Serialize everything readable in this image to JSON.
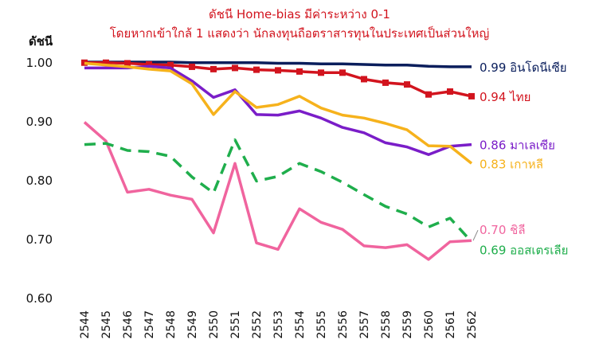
{
  "chart_data": {
    "type": "line",
    "title": "ดัชนี Home-bias มีค่าระหว่าง 0-1",
    "subtitle": "โดยหากเข้าใกล้ 1 แสดงว่า นักลงทุนถือตราสารทุนในประเทศเป็นส่วนใหญ่",
    "ylabel": "ดัชนี",
    "xlabel": "",
    "ylim": [
      0.6,
      1.0
    ],
    "yticks": [
      "0.60",
      "0.70",
      "0.80",
      "0.90",
      "1.00"
    ],
    "grid": false,
    "legend": "end-of-line labels",
    "x": [
      "2544",
      "2545",
      "2546",
      "2547",
      "2548",
      "2549",
      "2550",
      "2551",
      "2552",
      "2553",
      "2554",
      "2555",
      "2556",
      "2557",
      "2558",
      "2559",
      "2560",
      "2561",
      "2562"
    ],
    "series": [
      {
        "name": "อินโดนีเซีย",
        "end_label": "0.99",
        "color": "#0a1e5c",
        "dash": "solid",
        "markers": false,
        "values": [
          1.0,
          1.0,
          1.0,
          1.0,
          1.0,
          0.999,
          0.999,
          0.999,
          0.999,
          0.998,
          0.998,
          0.997,
          0.997,
          0.996,
          0.995,
          0.995,
          0.993,
          0.992,
          0.992
        ]
      },
      {
        "name": "ไทย",
        "end_label": "0.94",
        "color": "#d2141e",
        "dash": "solid",
        "markers": true,
        "values": [
          0.999,
          0.999,
          0.998,
          0.996,
          0.995,
          0.992,
          0.988,
          0.99,
          0.987,
          0.986,
          0.984,
          0.982,
          0.982,
          0.971,
          0.965,
          0.962,
          0.945,
          0.95,
          0.942
        ]
      },
      {
        "name": "มาเลเซีย",
        "end_label": "0.86",
        "color": "#7a1dc8",
        "dash": "solid",
        "markers": false,
        "values": [
          0.99,
          0.99,
          0.99,
          0.993,
          0.99,
          0.968,
          0.94,
          0.953,
          0.911,
          0.91,
          0.917,
          0.905,
          0.889,
          0.88,
          0.863,
          0.856,
          0.843,
          0.857,
          0.86
        ]
      },
      {
        "name": "เกาหลี",
        "end_label": "0.83",
        "color": "#f6b21c",
        "dash": "solid",
        "markers": false,
        "values": [
          0.998,
          0.995,
          0.992,
          0.988,
          0.985,
          0.963,
          0.911,
          0.95,
          0.923,
          0.928,
          0.942,
          0.922,
          0.91,
          0.905,
          0.896,
          0.885,
          0.858,
          0.857,
          0.828
        ]
      },
      {
        "name": "ชิลี",
        "end_label": "0.70",
        "color": "#f0649e",
        "dash": "solid",
        "markers": false,
        "values": [
          0.898,
          0.866,
          0.779,
          0.784,
          0.774,
          0.767,
          0.71,
          0.828,
          0.693,
          0.682,
          0.751,
          0.728,
          0.716,
          0.688,
          0.685,
          0.69,
          0.665,
          0.695,
          0.697
        ]
      },
      {
        "name": "ออสเตรเลีย",
        "end_label": "0.69",
        "color": "#1fae4c",
        "dash": "dashed",
        "markers": false,
        "values": [
          0.86,
          0.862,
          0.85,
          0.848,
          0.84,
          0.805,
          0.778,
          0.868,
          0.798,
          0.806,
          0.828,
          0.814,
          0.796,
          0.775,
          0.755,
          0.742,
          0.72,
          0.735,
          0.695
        ]
      }
    ]
  }
}
